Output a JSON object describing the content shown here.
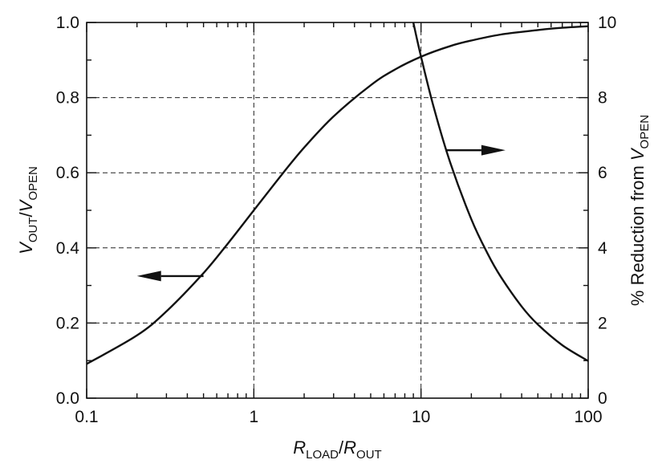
{
  "chart_data": {
    "type": "line",
    "x_scale": "log",
    "xlim": [
      0.1,
      100
    ],
    "ylim_left": [
      0.0,
      1.0
    ],
    "ylim_right": [
      0,
      10
    ],
    "grid": true,
    "x_ticks": [
      "0.1",
      "1",
      "10",
      "100"
    ],
    "y_left_ticks": [
      "0.0",
      "0.2",
      "0.4",
      "0.6",
      "0.8",
      "1.0"
    ],
    "y_right_ticks": [
      "0",
      "2",
      "4",
      "6",
      "8",
      "10"
    ],
    "xlabel": {
      "r1": "R",
      "s1": "LOAD",
      "sep": "/",
      "r2": "R",
      "s2": "OUT"
    },
    "ylabel_left": {
      "v1": "V",
      "s1": "OUT",
      "sep": "/",
      "v2": "V",
      "s2": "OPEN"
    },
    "ylabel_right": {
      "prefix": "% Reduction from ",
      "v": "V",
      "s": "OPEN"
    },
    "series": [
      {
        "axis": "left",
        "x": [
          0.1,
          0.2,
          0.3,
          0.5,
          0.7,
          1,
          1.5,
          2,
          3,
          5,
          7,
          10,
          15,
          20,
          30,
          50,
          70,
          100
        ],
        "y": [
          0.091,
          0.167,
          0.231,
          0.333,
          0.412,
          0.5,
          0.6,
          0.667,
          0.75,
          0.833,
          0.875,
          0.909,
          0.9375,
          0.952,
          0.968,
          0.98,
          0.986,
          0.99
        ]
      },
      {
        "axis": "right",
        "x": [
          9.0,
          10,
          12,
          15,
          20,
          25,
          30,
          40,
          50,
          70,
          100
        ],
        "y": [
          10.0,
          9.09,
          7.69,
          6.25,
          4.76,
          3.85,
          3.23,
          2.44,
          1.96,
          1.41,
          0.99
        ]
      }
    ],
    "arrows": [
      {
        "points_to": "left-axis",
        "from_x": 0.5,
        "to_x": 0.2,
        "y_left": 0.325
      },
      {
        "points_to": "right-axis",
        "from_x": 14,
        "to_x": 32,
        "y_left": 0.66
      }
    ]
  }
}
